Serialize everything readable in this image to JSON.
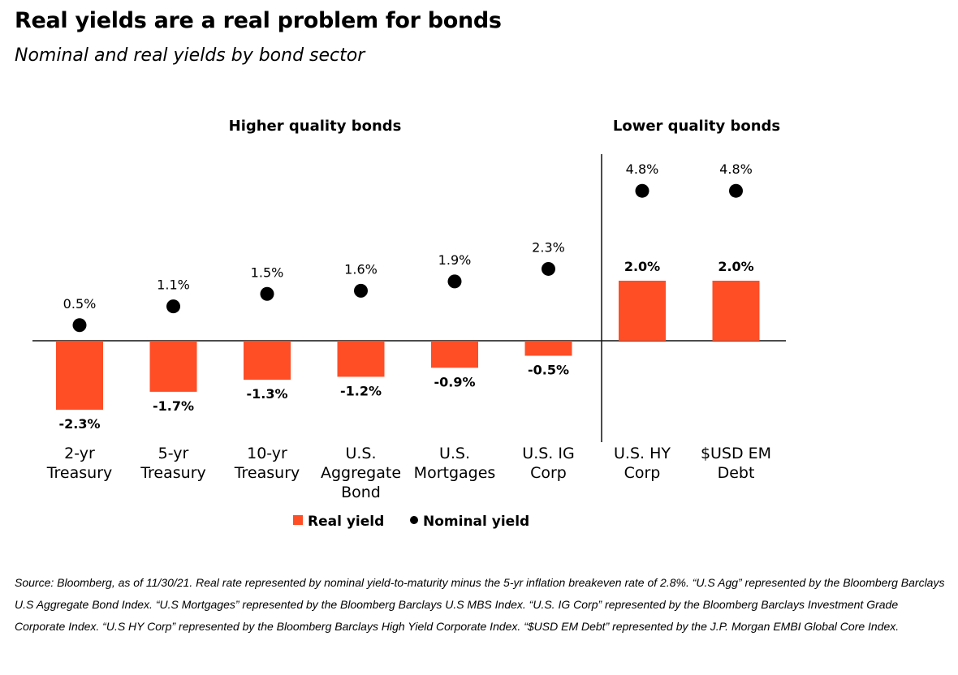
{
  "title": "Real yields are a real problem for bonds",
  "subtitle": "Nominal and real yields by bond sector",
  "groups": {
    "higher": "Higher quality bonds",
    "lower": "Lower quality bonds"
  },
  "chart_data": {
    "type": "bar",
    "categories": [
      [
        "2-yr",
        "Treasury"
      ],
      [
        "5-yr",
        "Treasury"
      ],
      [
        "10-yr",
        "Treasury"
      ],
      [
        "U.S.",
        "Aggregate",
        "Bond"
      ],
      [
        "U.S.",
        "Mortgages"
      ],
      [
        "U.S. IG",
        "Corp"
      ],
      [
        "U.S. HY",
        "Corp"
      ],
      [
        "$USD EM",
        "Debt"
      ]
    ],
    "series": [
      {
        "name": "Real yield",
        "mark": "bar",
        "color": "#ff4d26",
        "values": [
          -2.3,
          -1.7,
          -1.3,
          -1.2,
          -0.9,
          -0.5,
          2.0,
          2.0
        ],
        "labels": [
          "-2.3%",
          "-1.7%",
          "-1.3%",
          "-1.2%",
          "-0.9%",
          "-0.5%",
          "2.0%",
          "2.0%"
        ]
      },
      {
        "name": "Nominal yield",
        "mark": "dot",
        "color": "#000000",
        "values": [
          0.5,
          1.1,
          1.5,
          1.6,
          1.9,
          2.3,
          4.8,
          4.8
        ],
        "labels": [
          "0.5%",
          "1.1%",
          "1.5%",
          "1.6%",
          "1.9%",
          "2.3%",
          "4.8%",
          "4.8%"
        ]
      }
    ],
    "legend": "bottom-center",
    "grid": false
  },
  "source": "Source: Bloomberg, as of 11/30/21. Real rate represented by nominal yield-to-maturity minus the 5-yr inflation breakeven rate of 2.8%. “U.S Agg” represented by the Bloomberg Barclays U.S Aggregate Bond Index. “U.S Mortgages” represented by the Bloomberg Barclays U.S MBS Index. “U.S. IG Corp” represented by the Bloomberg Barclays Investment Grade Corporate Index. “U.S HY Corp” represented by the Bloomberg Barclays High Yield Corporate Index. “$USD EM Debt” represented by the J.P. Morgan EMBI Global Core Index."
}
